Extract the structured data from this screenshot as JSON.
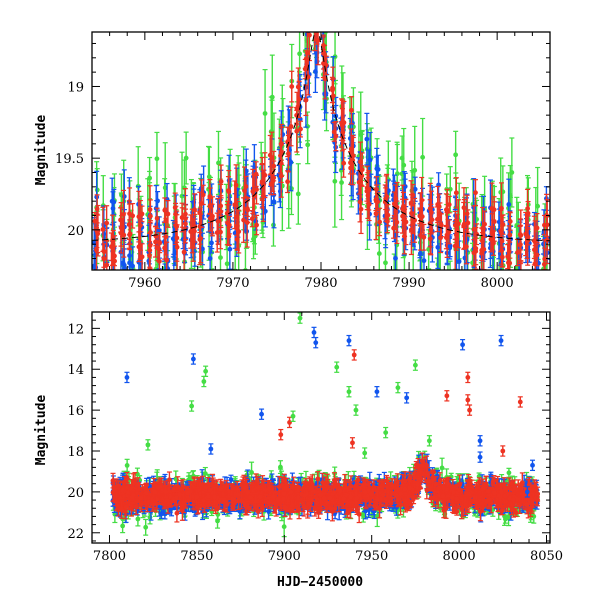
{
  "figure": {
    "xlabel": "HJD−2450000",
    "ylabel": "Magnitude"
  },
  "series_colors": {
    "green": "#44dd44",
    "blue": "#1155ee",
    "red": "#ee3322"
  },
  "chart_data": [
    {
      "type": "scatter",
      "title": "",
      "xlabel": "",
      "ylabel": "Magnitude",
      "xlim": [
        7954,
        8006
      ],
      "ylim": [
        20.28,
        18.62
      ],
      "inverted_y": true,
      "x_ticks": [
        7960,
        7970,
        7980,
        7990,
        8000
      ],
      "y_ticks": [
        19,
        19.5,
        20
      ],
      "grid": false,
      "error_bars": true,
      "model_curve": {
        "t0": 7979.5,
        "baseline": 20.1,
        "peak": 18.6,
        "u0": 0.06,
        "tE": 12
      },
      "series": [
        {
          "color": "green",
          "obs_per_day": 5,
          "scatter": 0.22,
          "errbar": 0.16
        },
        {
          "color": "blue",
          "obs_per_day": 6,
          "scatter": 0.14,
          "errbar": 0.1
        },
        {
          "color": "red",
          "obs_per_day": 6,
          "scatter": 0.12,
          "errbar": 0.09
        }
      ]
    },
    {
      "type": "scatter",
      "title": "",
      "xlabel": "HJD−2450000",
      "ylabel": "Magnitude",
      "xlim": [
        7790,
        8052
      ],
      "ylim": [
        22.5,
        11.2
      ],
      "inverted_y": true,
      "x_ticks": [
        7800,
        7850,
        7900,
        7950,
        8000,
        8050
      ],
      "y_ticks": [
        12,
        14,
        16,
        18,
        20,
        22
      ],
      "grid": false,
      "error_bars": true,
      "baseline_mag": 20.2,
      "data_range": [
        7802,
        8045
      ],
      "outliers": [
        {
          "x": 7810,
          "y": 14.4,
          "color": "blue"
        },
        {
          "x": 7848,
          "y": 13.5,
          "color": "blue"
        },
        {
          "x": 7847,
          "y": 15.8,
          "color": "green"
        },
        {
          "x": 7855,
          "y": 14.1,
          "color": "green"
        },
        {
          "x": 7854,
          "y": 14.6,
          "color": "green"
        },
        {
          "x": 7810,
          "y": 19.3,
          "color": "red"
        },
        {
          "x": 7822,
          "y": 17.7,
          "color": "green"
        },
        {
          "x": 7858,
          "y": 17.9,
          "color": "blue"
        },
        {
          "x": 7887,
          "y": 16.2,
          "color": "blue"
        },
        {
          "x": 7898,
          "y": 17.2,
          "color": "red"
        },
        {
          "x": 7903,
          "y": 16.6,
          "color": "red"
        },
        {
          "x": 7905,
          "y": 16.3,
          "color": "green"
        },
        {
          "x": 7909,
          "y": 11.5,
          "color": "green"
        },
        {
          "x": 7917,
          "y": 12.2,
          "color": "blue"
        },
        {
          "x": 7918,
          "y": 12.7,
          "color": "blue"
        },
        {
          "x": 7930,
          "y": 13.9,
          "color": "green"
        },
        {
          "x": 7937,
          "y": 12.6,
          "color": "blue"
        },
        {
          "x": 7940,
          "y": 13.3,
          "color": "red"
        },
        {
          "x": 7937,
          "y": 15.1,
          "color": "green"
        },
        {
          "x": 7939,
          "y": 17.6,
          "color": "red"
        },
        {
          "x": 7941,
          "y": 16.0,
          "color": "green"
        },
        {
          "x": 7953,
          "y": 15.1,
          "color": "blue"
        },
        {
          "x": 7965,
          "y": 14.9,
          "color": "green"
        },
        {
          "x": 7970,
          "y": 15.4,
          "color": "blue"
        },
        {
          "x": 7975,
          "y": 13.8,
          "color": "green"
        },
        {
          "x": 7946,
          "y": 18.1,
          "color": "green"
        },
        {
          "x": 7958,
          "y": 17.1,
          "color": "green"
        },
        {
          "x": 7983,
          "y": 17.5,
          "color": "green"
        },
        {
          "x": 7993,
          "y": 15.3,
          "color": "red"
        },
        {
          "x": 8002,
          "y": 12.8,
          "color": "blue"
        },
        {
          "x": 8005,
          "y": 14.4,
          "color": "red"
        },
        {
          "x": 8005,
          "y": 15.5,
          "color": "red"
        },
        {
          "x": 8006,
          "y": 16.0,
          "color": "red"
        },
        {
          "x": 8012,
          "y": 17.5,
          "color": "blue"
        },
        {
          "x": 8012,
          "y": 18.3,
          "color": "blue"
        },
        {
          "x": 8024,
          "y": 12.6,
          "color": "blue"
        },
        {
          "x": 8025,
          "y": 18.0,
          "color": "red"
        },
        {
          "x": 8035,
          "y": 15.6,
          "color": "red"
        },
        {
          "x": 8042,
          "y": 18.7,
          "color": "blue"
        },
        {
          "x": 8039,
          "y": 20.0,
          "color": "blue"
        }
      ]
    }
  ]
}
